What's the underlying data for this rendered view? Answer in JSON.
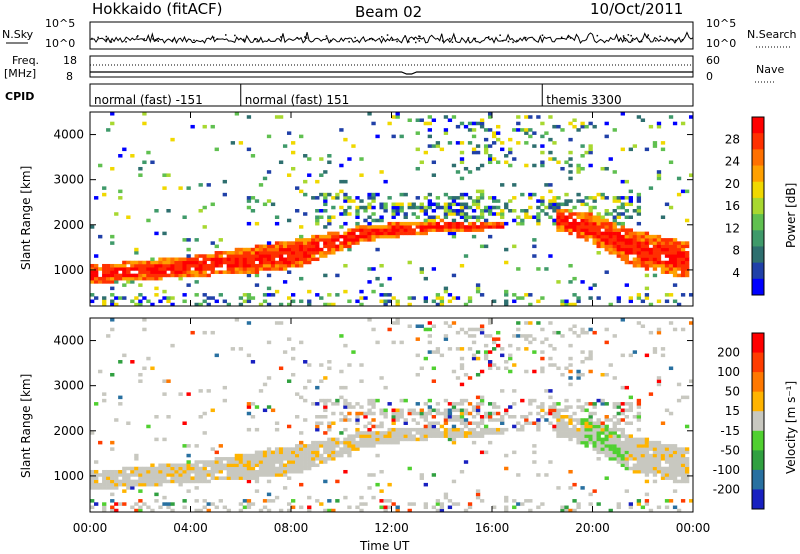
{
  "header": {
    "station": "Hokkaido (fitACF)",
    "beam": "Beam 02",
    "date": "10/Oct/2011"
  },
  "left_labels": {
    "nsky": "N.Sky",
    "freq_line1": "Freq.",
    "freq_line2": "[MHz]",
    "cpid": "CPID"
  },
  "right_labels": {
    "nsearch": "N.Search",
    "nave": "Nave"
  },
  "noise_axis": {
    "top": "10^5",
    "bottom": "10^0"
  },
  "freq_axis": {
    "top": "18",
    "bottom": "8"
  },
  "nave_axis": {
    "top": "60",
    "bottom": "0"
  },
  "cpid_segments": [
    {
      "label": "normal (fast) -151",
      "start_hour": 0.0
    },
    {
      "label": "normal (fast) 151",
      "start_hour": 6.0
    },
    {
      "label": "themis 3300",
      "start_hour": 18.0
    }
  ],
  "x_axis": {
    "label": "Time UT",
    "ticks": [
      "00:00",
      "04:00",
      "08:00",
      "12:00",
      "16:00",
      "20:00",
      "00:00"
    ]
  },
  "chart_data": [
    {
      "type": "heatmap",
      "panel": "power",
      "ylabel": "Slant Range [km]",
      "y_ticks": [
        1000,
        2000,
        3000,
        4000
      ],
      "ylim": [
        200,
        4500
      ],
      "xlim": [
        0,
        24
      ],
      "colorbar": {
        "label": "Power [dB]",
        "ticks": [
          "28",
          "24",
          "20",
          "16",
          "12",
          "8",
          "4"
        ],
        "colors": [
          "#0000ff",
          "#2040a8",
          "#2e6f6f",
          "#3f9a6a",
          "#60c050",
          "#a8d830",
          "#f0d800",
          "#ffa000",
          "#ff7000",
          "#ff3000",
          "#ff0000"
        ]
      },
      "bands": [
        {
          "t": [
            0,
            4,
            8,
            11,
            14,
            16.5
          ],
          "r_lo": [
            700,
            850,
            1000,
            1650,
            1850,
            1900
          ],
          "r_hi": [
            1100,
            1300,
            1650,
            2000,
            2100,
            2050
          ],
          "level": "high"
        },
        {
          "t": [
            18.5,
            20,
            21.5,
            23.9
          ],
          "r_lo": [
            1900,
            1600,
            1100,
            800
          ],
          "r_hi": [
            2350,
            2250,
            1900,
            1600
          ],
          "level": "high"
        }
      ]
    },
    {
      "type": "heatmap",
      "panel": "velocity",
      "ylabel": "Slant Range [km]",
      "y_ticks": [
        1000,
        2000,
        3000,
        4000
      ],
      "ylim": [
        200,
        4500
      ],
      "xlim": [
        0,
        24
      ],
      "colorbar": {
        "label": "Velocity [m s⁻¹]",
        "ticks": [
          "200",
          "100",
          "50",
          "15",
          "-15",
          "-50",
          "-100",
          "-200"
        ],
        "colors": [
          "#ff0000",
          "#ff3c00",
          "#ff7800",
          "#ffb400",
          "#c8c8c0",
          "#50d030",
          "#30a040",
          "#2870a0",
          "#1820c0"
        ]
      }
    }
  ]
}
